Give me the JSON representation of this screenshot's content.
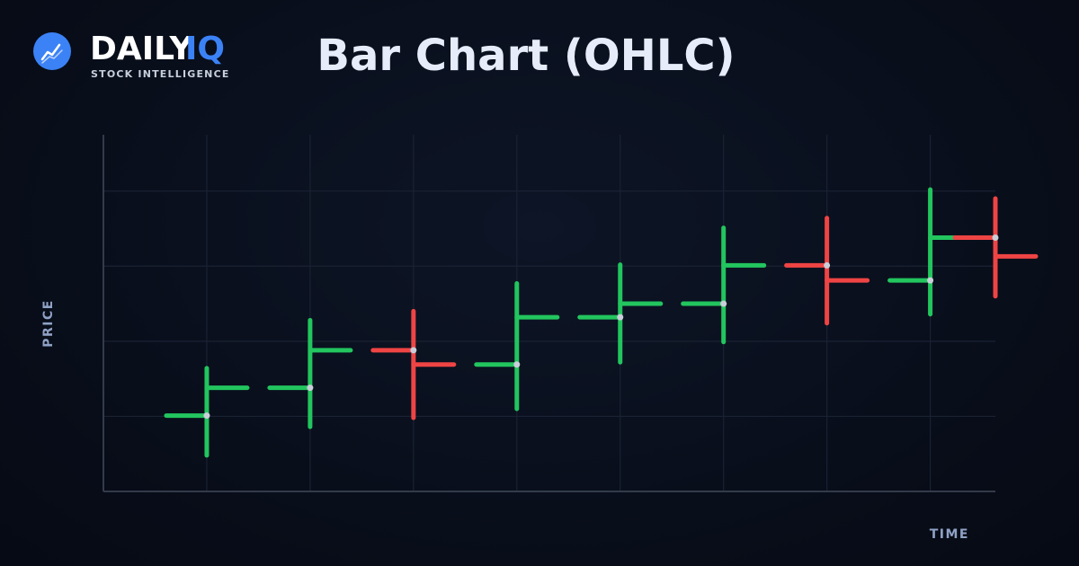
{
  "brand": {
    "name_main": "DAILY",
    "name_accent": "IQ",
    "tagline": "STOCK INTELLIGENCE"
  },
  "chart_data": {
    "type": "ohlc",
    "title": "Bar Chart (OHLC)",
    "y_label": "PRICE",
    "x_label": "TIME",
    "x": [
      1,
      2,
      3,
      4,
      5,
      6,
      7,
      8,
      8.63
    ],
    "open": [
      1.01,
      1.38,
      1.88,
      1.69,
      2.32,
      2.5,
      3.01,
      2.81,
      3.38
    ],
    "high": [
      1.64,
      2.28,
      2.4,
      2.77,
      3.02,
      3.51,
      3.64,
      4.02,
      3.9
    ],
    "low": [
      0.48,
      0.86,
      0.98,
      1.1,
      1.72,
      1.99,
      2.24,
      2.36,
      2.6
    ],
    "close": [
      1.38,
      1.88,
      1.69,
      2.32,
      2.5,
      3.01,
      2.81,
      3.38,
      3.13
    ],
    "up_color": "#22c55e",
    "down_color": "#ef4444",
    "xlim": [
      0,
      8.63
    ],
    "xticks": [
      1,
      2,
      3,
      4,
      5,
      6,
      7,
      8
    ],
    "ylim": [
      0,
      4.75
    ],
    "yticks": [
      1,
      2,
      3,
      4
    ],
    "grid": true
  }
}
